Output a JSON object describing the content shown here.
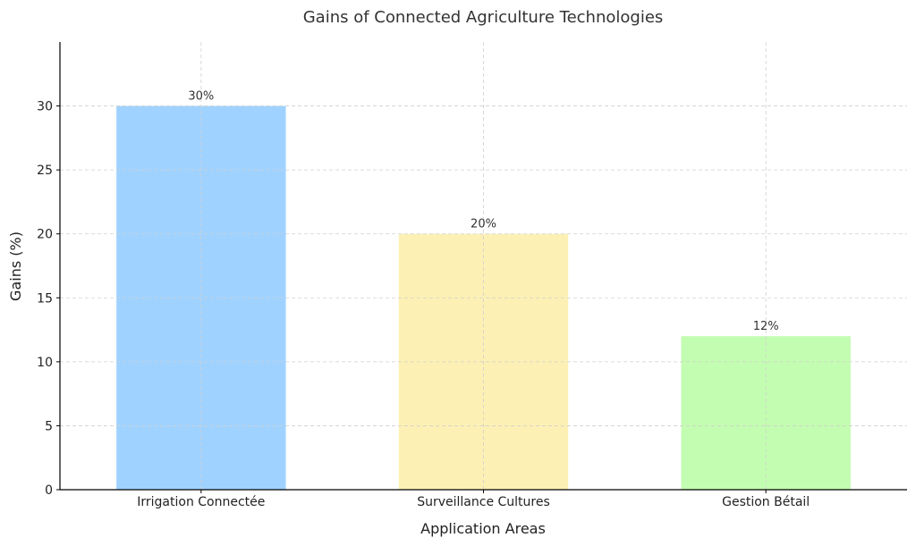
{
  "chart_data": {
    "type": "bar",
    "title": "Gains of Connected Agriculture Technologies",
    "xlabel": "Application Areas",
    "ylabel": "Gains (%)",
    "categories": [
      "Irrigation Connectée",
      "Surveillance Cultures",
      "Gestion Bétail"
    ],
    "values": [
      30,
      20,
      12
    ],
    "data_labels": [
      "30%",
      "20%",
      "12%"
    ],
    "colors": [
      "#a0d2ff",
      "#fdf0b4",
      "#c3fdb1"
    ],
    "ylim": [
      0,
      35
    ],
    "yticks": [
      0,
      5,
      10,
      15,
      20,
      25,
      30
    ],
    "grid": true,
    "legend": "none"
  }
}
